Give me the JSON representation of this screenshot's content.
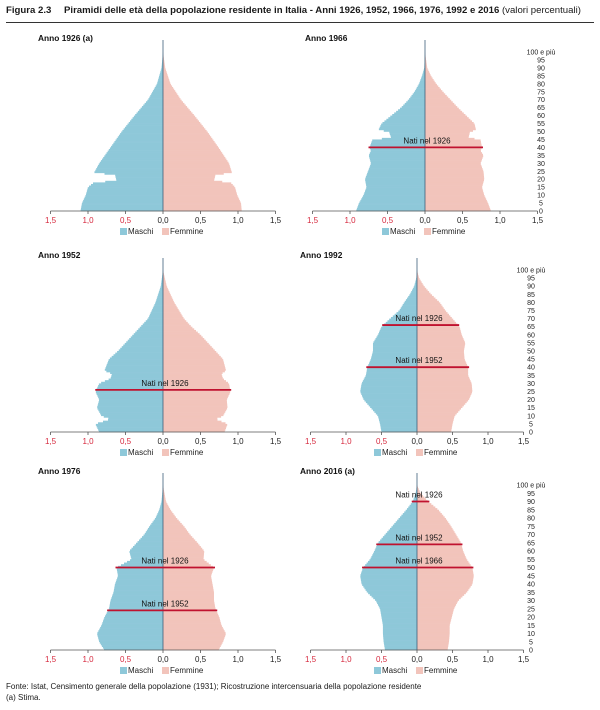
{
  "header": {
    "figure_label": "Figura 2.3",
    "title": "Piramidi delle età della popolazione residente in Italia - Anni 1926, 1952, 1966, 1976, 1992 e 2016",
    "subtitle": "(valori percentuali)"
  },
  "footer": {
    "source": "Fonte: Istat, Censimento generale della popolazione (1931); Ricostruzione intercensuaria della popolazione residente",
    "note": "(a) Stima."
  },
  "colors": {
    "male": "#8ec8d9",
    "female": "#f2c4bb",
    "cohort_line": "#c0122f",
    "axis_red": "#d6293e"
  },
  "chart_data": [
    {
      "type": "bar",
      "orientation": "horizontal",
      "title": "Anno 1926 (a)",
      "x_ticks": [
        "1,5",
        "1,0",
        "0,5",
        "0,0",
        "0,5",
        "1,0",
        "1,5"
      ],
      "xlim": [
        -1.5,
        1.5
      ],
      "legend": [
        "Maschi",
        "Femmine"
      ],
      "age_labels": [],
      "profile_maschi": [
        [
          0,
          1.1
        ],
        [
          5,
          1.08
        ],
        [
          10,
          1.03
        ],
        [
          15,
          1.0
        ],
        [
          18,
          0.92
        ],
        [
          19,
          0.62
        ],
        [
          23,
          0.64
        ],
        [
          24,
          0.92
        ],
        [
          30,
          0.85
        ],
        [
          40,
          0.7
        ],
        [
          50,
          0.55
        ],
        [
          60,
          0.38
        ],
        [
          70,
          0.2
        ],
        [
          80,
          0.08
        ],
        [
          90,
          0.02
        ],
        [
          100,
          0.0
        ]
      ],
      "profile_femmine": [
        [
          0,
          1.05
        ],
        [
          5,
          1.04
        ],
        [
          10,
          0.99
        ],
        [
          15,
          0.96
        ],
        [
          18,
          0.9
        ],
        [
          19,
          0.68
        ],
        [
          23,
          0.7
        ],
        [
          24,
          0.92
        ],
        [
          30,
          0.88
        ],
        [
          40,
          0.74
        ],
        [
          50,
          0.59
        ],
        [
          60,
          0.42
        ],
        [
          70,
          0.24
        ],
        [
          80,
          0.1
        ],
        [
          90,
          0.03
        ],
        [
          100,
          0.0
        ]
      ],
      "cohorts": []
    },
    {
      "type": "bar",
      "orientation": "horizontal",
      "title": "Anno 1966",
      "x_ticks": [
        "1,5",
        "1,0",
        "0,5",
        "0,0",
        "0,5",
        "1,0",
        "1,5"
      ],
      "xlim": [
        -1.5,
        1.5
      ],
      "legend": [
        "Maschi",
        "Femmine"
      ],
      "age_labels": [
        "100 e più",
        "95",
        "90",
        "85",
        "80",
        "75",
        "70",
        "65",
        "60",
        "55",
        "50",
        "45",
        "40",
        "35",
        "30",
        "25",
        "20",
        "15",
        "10",
        "5",
        "0"
      ],
      "profile_maschi": [
        [
          0,
          0.92
        ],
        [
          5,
          0.88
        ],
        [
          10,
          0.82
        ],
        [
          15,
          0.78
        ],
        [
          20,
          0.8
        ],
        [
          25,
          0.76
        ],
        [
          30,
          0.72
        ],
        [
          35,
          0.75
        ],
        [
          38,
          0.72
        ],
        [
          40,
          0.74
        ],
        [
          45,
          0.7
        ],
        [
          46,
          0.45
        ],
        [
          50,
          0.48
        ],
        [
          51,
          0.62
        ],
        [
          55,
          0.58
        ],
        [
          60,
          0.45
        ],
        [
          65,
          0.32
        ],
        [
          70,
          0.22
        ],
        [
          75,
          0.14
        ],
        [
          80,
          0.08
        ],
        [
          85,
          0.04
        ],
        [
          90,
          0.01
        ],
        [
          100,
          0.0
        ]
      ],
      "profile_femmine": [
        [
          0,
          0.88
        ],
        [
          5,
          0.84
        ],
        [
          10,
          0.79
        ],
        [
          15,
          0.76
        ],
        [
          20,
          0.79
        ],
        [
          25,
          0.78
        ],
        [
          30,
          0.74
        ],
        [
          35,
          0.78
        ],
        [
          38,
          0.74
        ],
        [
          40,
          0.76
        ],
        [
          45,
          0.74
        ],
        [
          46,
          0.58
        ],
        [
          50,
          0.6
        ],
        [
          51,
          0.68
        ],
        [
          55,
          0.66
        ],
        [
          60,
          0.55
        ],
        [
          65,
          0.44
        ],
        [
          70,
          0.34
        ],
        [
          75,
          0.24
        ],
        [
          80,
          0.15
        ],
        [
          85,
          0.08
        ],
        [
          90,
          0.03
        ],
        [
          100,
          0.0
        ]
      ],
      "cohorts": [
        {
          "label": "Nati nel 1926",
          "age": 40
        }
      ]
    },
    {
      "type": "bar",
      "orientation": "horizontal",
      "title": "Anno 1952",
      "x_ticks": [
        "1,5",
        "1,0",
        "0,5",
        "0,0",
        "0,5",
        "1,0",
        "1,5"
      ],
      "xlim": [
        -1.5,
        1.5
      ],
      "legend": [
        "Maschi",
        "Femmine"
      ],
      "age_labels": [],
      "profile_maschi": [
        [
          0,
          0.85
        ],
        [
          5,
          0.9
        ],
        [
          8,
          0.7
        ],
        [
          10,
          0.82
        ],
        [
          15,
          0.88
        ],
        [
          20,
          0.85
        ],
        [
          25,
          0.9
        ],
        [
          30,
          0.85
        ],
        [
          33,
          0.7
        ],
        [
          36,
          0.68
        ],
        [
          38,
          0.78
        ],
        [
          45,
          0.72
        ],
        [
          50,
          0.6
        ],
        [
          55,
          0.5
        ],
        [
          60,
          0.4
        ],
        [
          65,
          0.3
        ],
        [
          70,
          0.2
        ],
        [
          80,
          0.1
        ],
        [
          90,
          0.03
        ],
        [
          100,
          0.0
        ]
      ],
      "profile_femmine": [
        [
          0,
          0.82
        ],
        [
          5,
          0.86
        ],
        [
          8,
          0.7
        ],
        [
          10,
          0.8
        ],
        [
          15,
          0.86
        ],
        [
          20,
          0.85
        ],
        [
          25,
          0.9
        ],
        [
          30,
          0.88
        ],
        [
          33,
          0.8
        ],
        [
          36,
          0.78
        ],
        [
          38,
          0.84
        ],
        [
          45,
          0.8
        ],
        [
          50,
          0.7
        ],
        [
          55,
          0.6
        ],
        [
          60,
          0.5
        ],
        [
          65,
          0.38
        ],
        [
          70,
          0.28
        ],
        [
          80,
          0.15
        ],
        [
          90,
          0.05
        ],
        [
          100,
          0.0
        ]
      ],
      "cohorts": [
        {
          "label": "Nati nel 1926",
          "age": 26
        }
      ]
    },
    {
      "type": "bar",
      "orientation": "horizontal",
      "title": "Anno 1992",
      "x_ticks": [
        "1,5",
        "1,0",
        "0,5",
        "0,0",
        "0,5",
        "1,0",
        "1,5"
      ],
      "xlim": [
        -1.5,
        1.5
      ],
      "legend": [
        "Maschi",
        "Femmine"
      ],
      "age_labels": [
        "100 e più",
        "95",
        "90",
        "85",
        "80",
        "75",
        "70",
        "65",
        "60",
        "55",
        "50",
        "45",
        "40",
        "35",
        "30",
        "25",
        "20",
        "15",
        "10",
        "5",
        "0"
      ],
      "profile_maschi": [
        [
          0,
          0.5
        ],
        [
          5,
          0.52
        ],
        [
          10,
          0.55
        ],
        [
          15,
          0.65
        ],
        [
          20,
          0.75
        ],
        [
          25,
          0.8
        ],
        [
          30,
          0.78
        ],
        [
          35,
          0.72
        ],
        [
          40,
          0.7
        ],
        [
          45,
          0.65
        ],
        [
          50,
          0.62
        ],
        [
          55,
          0.62
        ],
        [
          60,
          0.55
        ],
        [
          65,
          0.5
        ],
        [
          70,
          0.38
        ],
        [
          75,
          0.25
        ],
        [
          80,
          0.18
        ],
        [
          85,
          0.1
        ],
        [
          90,
          0.04
        ],
        [
          95,
          0.01
        ],
        [
          100,
          0.0
        ]
      ],
      "profile_femmine": [
        [
          0,
          0.48
        ],
        [
          5,
          0.5
        ],
        [
          10,
          0.53
        ],
        [
          15,
          0.63
        ],
        [
          20,
          0.73
        ],
        [
          25,
          0.78
        ],
        [
          30,
          0.77
        ],
        [
          35,
          0.72
        ],
        [
          40,
          0.72
        ],
        [
          45,
          0.67
        ],
        [
          50,
          0.66
        ],
        [
          55,
          0.68
        ],
        [
          60,
          0.63
        ],
        [
          65,
          0.6
        ],
        [
          70,
          0.5
        ],
        [
          75,
          0.4
        ],
        [
          80,
          0.32
        ],
        [
          85,
          0.2
        ],
        [
          90,
          0.1
        ],
        [
          95,
          0.03
        ],
        [
          100,
          0.0
        ]
      ],
      "cohorts": [
        {
          "label": "Nati nel 1926",
          "age": 66
        },
        {
          "label": "Nati nel 1952",
          "age": 40
        }
      ]
    },
    {
      "type": "bar",
      "orientation": "horizontal",
      "title": "Anno 1976",
      "x_ticks": [
        "1,5",
        "1,0",
        "0,5",
        "0,0",
        "0,5",
        "1,0",
        "1,5"
      ],
      "xlim": [
        -1.5,
        1.5
      ],
      "legend": [
        "Maschi",
        "Femmine"
      ],
      "age_labels": [],
      "profile_maschi": [
        [
          0,
          0.78
        ],
        [
          5,
          0.85
        ],
        [
          10,
          0.88
        ],
        [
          15,
          0.82
        ],
        [
          20,
          0.78
        ],
        [
          25,
          0.72
        ],
        [
          30,
          0.7
        ],
        [
          35,
          0.66
        ],
        [
          40,
          0.64
        ],
        [
          45,
          0.6
        ],
        [
          50,
          0.62
        ],
        [
          55,
          0.42
        ],
        [
          60,
          0.45
        ],
        [
          65,
          0.35
        ],
        [
          70,
          0.25
        ],
        [
          75,
          0.18
        ],
        [
          80,
          0.1
        ],
        [
          85,
          0.05
        ],
        [
          90,
          0.02
        ],
        [
          100,
          0.0
        ]
      ],
      "profile_femmine": [
        [
          0,
          0.74
        ],
        [
          5,
          0.8
        ],
        [
          10,
          0.84
        ],
        [
          15,
          0.78
        ],
        [
          20,
          0.75
        ],
        [
          25,
          0.7
        ],
        [
          30,
          0.68
        ],
        [
          35,
          0.68
        ],
        [
          40,
          0.66
        ],
        [
          45,
          0.64
        ],
        [
          50,
          0.68
        ],
        [
          55,
          0.54
        ],
        [
          60,
          0.55
        ],
        [
          65,
          0.46
        ],
        [
          70,
          0.36
        ],
        [
          75,
          0.28
        ],
        [
          80,
          0.18
        ],
        [
          85,
          0.1
        ],
        [
          90,
          0.04
        ],
        [
          100,
          0.0
        ]
      ],
      "cohorts": [
        {
          "label": "Nati nel 1926",
          "age": 50
        },
        {
          "label": "Nati nel 1952",
          "age": 24
        }
      ]
    },
    {
      "type": "bar",
      "orientation": "horizontal",
      "title": "Anno 2016 (a)",
      "x_ticks": [
        "1,5",
        "1,0",
        "0,5",
        "0,0",
        "0,5",
        "1,0",
        "1,5"
      ],
      "xlim": [
        -1.5,
        1.5
      ],
      "legend": [
        "Maschi",
        "Femmine"
      ],
      "age_labels": [
        "100 e più",
        "95",
        "90",
        "85",
        "80",
        "75",
        "70",
        "65",
        "60",
        "55",
        "50",
        "45",
        "40",
        "35",
        "30",
        "25",
        "20",
        "15",
        "10",
        "5",
        "0"
      ],
      "profile_maschi": [
        [
          0,
          0.45
        ],
        [
          5,
          0.47
        ],
        [
          10,
          0.48
        ],
        [
          15,
          0.48
        ],
        [
          20,
          0.5
        ],
        [
          25,
          0.52
        ],
        [
          30,
          0.58
        ],
        [
          35,
          0.7
        ],
        [
          40,
          0.78
        ],
        [
          45,
          0.8
        ],
        [
          50,
          0.76
        ],
        [
          55,
          0.66
        ],
        [
          60,
          0.6
        ],
        [
          65,
          0.55
        ],
        [
          70,
          0.45
        ],
        [
          75,
          0.35
        ],
        [
          80,
          0.25
        ],
        [
          85,
          0.15
        ],
        [
          90,
          0.06
        ],
        [
          95,
          0.02
        ],
        [
          100,
          0.0
        ]
      ],
      "profile_femmine": [
        [
          0,
          0.43
        ],
        [
          5,
          0.45
        ],
        [
          10,
          0.46
        ],
        [
          15,
          0.46
        ],
        [
          20,
          0.49
        ],
        [
          25,
          0.52
        ],
        [
          30,
          0.58
        ],
        [
          35,
          0.7
        ],
        [
          40,
          0.78
        ],
        [
          45,
          0.8
        ],
        [
          50,
          0.78
        ],
        [
          55,
          0.7
        ],
        [
          60,
          0.65
        ],
        [
          65,
          0.62
        ],
        [
          70,
          0.55
        ],
        [
          75,
          0.48
        ],
        [
          80,
          0.4
        ],
        [
          85,
          0.3
        ],
        [
          90,
          0.16
        ],
        [
          95,
          0.05
        ],
        [
          100,
          0.0
        ]
      ],
      "cohorts": [
        {
          "label": "Nati nel 1926",
          "age": 90
        },
        {
          "label": "Nati nel 1952",
          "age": 64
        },
        {
          "label": "Nati nel 1966",
          "age": 50
        }
      ]
    }
  ]
}
